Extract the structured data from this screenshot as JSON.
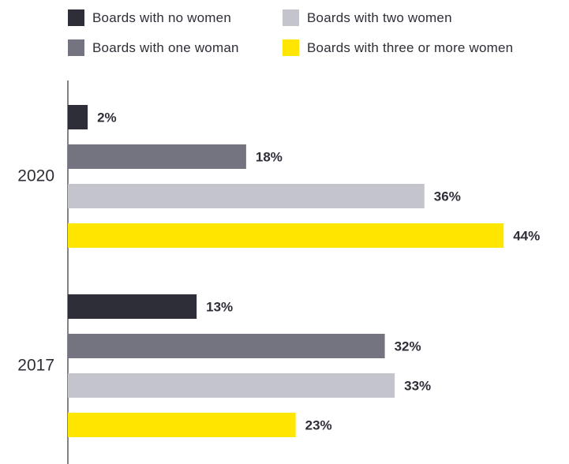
{
  "chart_data": {
    "type": "bar",
    "orientation": "horizontal",
    "categories": [
      "2020",
      "2017"
    ],
    "series": [
      {
        "name": "Boards with no women",
        "values": [
          2,
          13
        ],
        "labels": [
          "2%",
          "13%"
        ],
        "color": "#2e2e38"
      },
      {
        "name": "Boards with one woman",
        "values": [
          18,
          32
        ],
        "labels": [
          "18%",
          "32%"
        ],
        "color": "#747480"
      },
      {
        "name": "Boards with two women",
        "values": [
          36,
          33
        ],
        "labels": [
          "36%",
          "33%"
        ],
        "color": "#c4c4cd"
      },
      {
        "name": "Boards with three or more women",
        "values": [
          44,
          23
        ],
        "labels": [
          "44%",
          "23%"
        ],
        "color": "#ffe600"
      }
    ],
    "title": "",
    "xlabel": "",
    "ylabel": "",
    "xlim": [
      0,
      44
    ],
    "grid": false,
    "legend": "top"
  }
}
